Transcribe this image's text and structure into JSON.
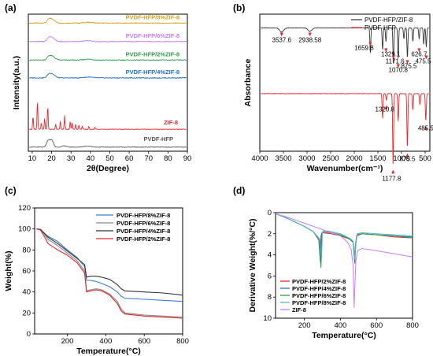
{
  "chart_data": [
    {
      "panel": "(a)",
      "type": "line",
      "xlabel": "2θ(Degree)",
      "ylabel": "Intensity(a.u.)",
      "xlim": [
        8,
        90
      ],
      "xticks": [
        10,
        20,
        30,
        40,
        50,
        60,
        70,
        80,
        90
      ],
      "series": [
        {
          "name": "PVDF-HFP/8%ZIF-8",
          "color": "#d4a017",
          "baseline": 0.935,
          "kind": "composite"
        },
        {
          "name": "PVDF-HFP/6%ZIF-8",
          "color": "#c77dff",
          "baseline": 0.8,
          "kind": "composite"
        },
        {
          "name": "PVDF-HFP/2%ZIF-8",
          "color": "#2e9e4a",
          "baseline": 0.665,
          "kind": "composite"
        },
        {
          "name": "PVDF-HFP/4%ZIF-8",
          "color": "#1f6fd0",
          "baseline": 0.535,
          "kind": "composite"
        },
        {
          "name": "ZIF-8",
          "color": "#e8262a",
          "baseline": 0.16,
          "kind": "zif",
          "peaks": [
            [
              7.3,
              0.35
            ],
            [
              10.4,
              0.1
            ],
            [
              12.7,
              0.22
            ],
            [
              14.7,
              0.05
            ],
            [
              16.4,
              0.08
            ],
            [
              18.0,
              0.18
            ],
            [
              22.1,
              0.04
            ],
            [
              24.5,
              0.06
            ],
            [
              26.7,
              0.1
            ],
            [
              29.6,
              0.06
            ],
            [
              30.6,
              0.05
            ],
            [
              32.4,
              0.04
            ],
            [
              34.0,
              0.03
            ],
            [
              35.8,
              0.025
            ],
            [
              39.2,
              0.02
            ],
            [
              42.3,
              0.015
            ]
          ]
        },
        {
          "name": "PVDF-HFP",
          "color": "#555555",
          "baseline": 0.03,
          "kind": "pvdf"
        }
      ]
    },
    {
      "panel": "(b)",
      "type": "line",
      "xlabel": "Wavenumber(cm⁻¹)",
      "ylabel": "Absorbance",
      "xlim": [
        4000,
        400
      ],
      "xticks": [
        4000,
        3500,
        3000,
        2500,
        2000,
        1500,
        1000,
        500
      ],
      "legend": [
        "PVDF-HFP/ZIF-8",
        "PVDF-HFP"
      ],
      "series": [
        {
          "name": "PVDF-HFP/ZIF-8",
          "color": "#333333",
          "baseline": 0.9,
          "bands": [
            [
              3537.6,
              0.03
            ],
            [
              2938.58,
              0.025
            ],
            [
              1659.8,
              0.18
            ],
            [
              1400,
              0.16
            ],
            [
              1329.1,
              0.1
            ],
            [
              1171.6,
              0.26
            ],
            [
              1070.8,
              0.22
            ],
            [
              950,
              0.08
            ],
            [
              875.5,
              0.22
            ],
            [
              760,
              0.1
            ],
            [
              626.7,
              0.08
            ],
            [
              530,
              0.12
            ],
            [
              475.5,
              0.14
            ]
          ]
        },
        {
          "name": "PVDF-HFP",
          "color": "#e8262a",
          "baseline": 0.42,
          "bands": [
            [
              1400,
              0.18
            ],
            [
              1320.8,
              0.05
            ],
            [
              1177.8,
              0.52
            ],
            [
              1070,
              0.2
            ],
            [
              875.5,
              0.4
            ],
            [
              760,
              0.12
            ],
            [
              610,
              0.08
            ],
            [
              485.5,
              0.2
            ]
          ]
        }
      ],
      "annotations": [
        {
          "label": "3537.6",
          "x": 3537.6,
          "series": 0
        },
        {
          "label": "2938.58",
          "x": 2938.58,
          "series": 0
        },
        {
          "label": "1659.8",
          "x": 1659.8,
          "series": 0
        },
        {
          "label": "1329.1",
          "x": 1329.1,
          "series": 0
        },
        {
          "label": "1171.6",
          "x": 1171.6,
          "series": 0
        },
        {
          "label": "1070.8",
          "x": 1070.8,
          "series": 0
        },
        {
          "label": "875.5",
          "x": 875.5,
          "series": 0
        },
        {
          "label": "626.7",
          "x": 626.7,
          "series": 0
        },
        {
          "label": "475.5",
          "x": 475.5,
          "series": 0
        },
        {
          "label": "1320.8",
          "x": 1320.8,
          "series": 1
        },
        {
          "label": "1177.8",
          "x": 1177.8,
          "series": 1
        },
        {
          "label": "875.5",
          "x": 875.5,
          "series": 1
        },
        {
          "label": "485.5",
          "x": 485.5,
          "series": 1
        }
      ]
    },
    {
      "panel": "(c)",
      "type": "line",
      "xlabel": "Temperature(°C)",
      "ylabel": "Weight(%)",
      "xlim": [
        30,
        800
      ],
      "ylim": [
        0,
        120
      ],
      "xticks": [
        200,
        400,
        600,
        800
      ],
      "yticks": [
        0,
        20,
        40,
        60,
        80,
        100,
        120
      ],
      "series": [
        {
          "name": "PVDF-HFP/8%ZIF-8",
          "color": "#3a7fd0",
          "x": [
            40,
            60,
            80,
            100,
            150,
            200,
            250,
            290,
            300,
            320,
            350,
            380,
            420,
            460,
            480,
            500,
            600,
            700,
            800
          ],
          "y": [
            100,
            99.5,
            96,
            93,
            88,
            80,
            73,
            64,
            51,
            51,
            50,
            48,
            45,
            40,
            36,
            34,
            33,
            32,
            31
          ]
        },
        {
          "name": "PVDF-HFP/6%ZIF-8",
          "color": "#8a8a8a",
          "x": [
            40,
            60,
            80,
            100,
            150,
            200,
            250,
            290,
            300,
            320,
            350,
            380,
            420,
            460,
            480,
            500,
            600,
            700,
            800
          ],
          "y": [
            100,
            99.5,
            95,
            90,
            84,
            77,
            70,
            60,
            41,
            42,
            43,
            42,
            38,
            31,
            24,
            20,
            18,
            17,
            16
          ]
        },
        {
          "name": "PVDF-HFP/4%ZIF-8",
          "color": "#333333",
          "x": [
            40,
            60,
            80,
            100,
            150,
            200,
            250,
            290,
            300,
            320,
            350,
            380,
            420,
            460,
            480,
            500,
            600,
            700,
            800
          ],
          "y": [
            100,
            99.5,
            96,
            92,
            86,
            79,
            72,
            66,
            54,
            55,
            55,
            54,
            52,
            47,
            43,
            41,
            40,
            39,
            37
          ]
        },
        {
          "name": "PVDF-HFP/2%ZIF-8",
          "color": "#e8262a",
          "x": [
            40,
            60,
            80,
            100,
            150,
            200,
            250,
            290,
            300,
            320,
            350,
            380,
            420,
            460,
            480,
            500,
            600,
            700,
            800
          ],
          "y": [
            100,
            99,
            93,
            86,
            80,
            75,
            68,
            58,
            40,
            41,
            42,
            41,
            37,
            29,
            22,
            19,
            17,
            16,
            15
          ]
        }
      ]
    },
    {
      "panel": "(d)",
      "type": "line",
      "xlabel": "Temperature(°C)",
      "ylabel": "Derivative Weight(%/°C)",
      "xlim": [
        40,
        800
      ],
      "ylim": [
        0,
        10
      ],
      "y_inverted": true,
      "xticks": [
        200,
        400,
        600,
        800
      ],
      "yticks": [
        0,
        2,
        4,
        6,
        8,
        10
      ],
      "series": [
        {
          "name": "PVDF-HFP/2%ZIF-8",
          "color": "#e8262a",
          "x": [
            40,
            100,
            150,
            200,
            250,
            280,
            288,
            292,
            300,
            350,
            400,
            450,
            470,
            478,
            482,
            490,
            520,
            600,
            700,
            800
          ],
          "y": [
            0.1,
            0.5,
            0.9,
            1.3,
            1.8,
            2.6,
            4.6,
            2.2,
            1.9,
            2.0,
            2.2,
            2.5,
            2.8,
            4.5,
            3.2,
            2.2,
            2.0,
            2.1,
            2.3,
            2.4
          ]
        },
        {
          "name": "PVDF-HFP/4%ZIF-8",
          "color": "#1f6fd0",
          "x": [
            40,
            100,
            150,
            200,
            250,
            280,
            290,
            295,
            302,
            350,
            400,
            450,
            470,
            480,
            485,
            492,
            520,
            600,
            700,
            800
          ],
          "y": [
            0.1,
            0.5,
            0.9,
            1.3,
            1.8,
            2.5,
            4.8,
            2.0,
            1.8,
            1.9,
            2.1,
            2.5,
            2.8,
            4.8,
            3.0,
            2.1,
            2.0,
            2.1,
            2.2,
            2.3
          ]
        },
        {
          "name": "PVDF-HFP/6%ZIF-8",
          "color": "#2e9e4a",
          "x": [
            40,
            100,
            150,
            200,
            250,
            282,
            292,
            298,
            305,
            350,
            400,
            450,
            470,
            478,
            484,
            492,
            520,
            600,
            700,
            800
          ],
          "y": [
            0.1,
            0.5,
            0.9,
            1.3,
            1.8,
            2.6,
            5.2,
            2.0,
            1.8,
            1.9,
            2.1,
            2.5,
            2.8,
            4.3,
            3.0,
            2.1,
            2.0,
            2.1,
            2.2,
            2.4
          ]
        },
        {
          "name": "PVDF-HFP/8%ZIF-8",
          "color": "#4bb8c8",
          "x": [
            40,
            100,
            150,
            200,
            250,
            285,
            295,
            300,
            308,
            350,
            400,
            450,
            470,
            480,
            486,
            494,
            520,
            600,
            700,
            800
          ],
          "y": [
            0.1,
            0.5,
            0.9,
            1.3,
            1.8,
            2.5,
            4.4,
            1.9,
            1.7,
            1.8,
            2.0,
            2.4,
            2.7,
            4.4,
            2.9,
            2.0,
            1.9,
            2.0,
            2.1,
            2.2
          ]
        },
        {
          "name": "ZIF-8",
          "color": "#c77dff",
          "x": [
            40,
            100,
            200,
            300,
            400,
            440,
            460,
            470,
            476,
            480,
            486,
            495,
            520,
            560,
            600,
            700,
            800
          ],
          "y": [
            0.1,
            0.4,
            1.0,
            1.6,
            2.2,
            2.8,
            3.5,
            5.0,
            9.0,
            7.0,
            4.5,
            3.6,
            3.4,
            3.5,
            3.6,
            3.9,
            4.2
          ]
        }
      ]
    }
  ]
}
